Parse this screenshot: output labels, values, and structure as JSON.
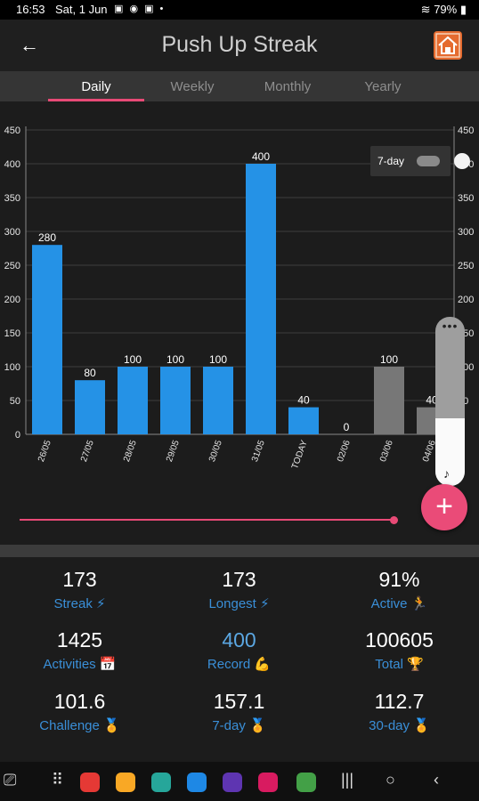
{
  "status": {
    "time": "16:53",
    "date": "Sat, 1 Jun",
    "icons": "▣ ◉ ▣ •",
    "battery": "79%"
  },
  "appbar": {
    "back_icon": "←",
    "title": "Push Up Streak",
    "app_icon": "home-icon"
  },
  "tabs": [
    {
      "label": "Daily",
      "active": true
    },
    {
      "label": "Weekly",
      "active": false
    },
    {
      "label": "Monthly",
      "active": false
    },
    {
      "label": "Yearly",
      "active": false
    }
  ],
  "chart_toggle": {
    "label": "7-day",
    "on": false
  },
  "chart_data": {
    "type": "bar",
    "categories": [
      "26/05",
      "27/05",
      "28/05",
      "29/05",
      "30/05",
      "31/05",
      "TODAY",
      "02/06",
      "03/06",
      "04/06"
    ],
    "values": [
      280,
      80,
      100,
      100,
      100,
      400,
      40,
      0,
      100,
      40
    ],
    "value_labels": [
      "280",
      "80",
      "100",
      "100",
      "100",
      "400",
      "40",
      "0",
      "100",
      "40"
    ],
    "bar_colors": [
      "#2592e6",
      "#2592e6",
      "#2592e6",
      "#2592e6",
      "#2592e6",
      "#2592e6",
      "#2592e6",
      "#2592e6",
      "#777777",
      "#777777"
    ],
    "ylim": [
      0,
      450
    ],
    "yticks": [
      "0",
      "50",
      "100",
      "150",
      "200",
      "250",
      "300",
      "350",
      "400",
      "450"
    ],
    "grid": true
  },
  "volume_slider": {
    "dots": "•••",
    "level": 0.4,
    "icon": "♪"
  },
  "fab": {
    "label": "+"
  },
  "range_slider": {
    "level": 1.0
  },
  "stats": [
    {
      "value": "173",
      "label": "Streak ⚡"
    },
    {
      "value": "173",
      "label": "Longest ⚡"
    },
    {
      "value": "91%",
      "label": "Active 🏃"
    },
    {
      "value": "1425",
      "label": "Activities 📅"
    },
    {
      "value": "400",
      "label": "Record 💪"
    },
    {
      "value": "100605",
      "label": "Total 🏆"
    },
    {
      "value": "101.6",
      "label": "Challenge 🏅"
    },
    {
      "value": "157.1",
      "label": "7-day 🏅"
    },
    {
      "value": "112.7",
      "label": "30-day 🏅"
    }
  ],
  "navbar": {
    "apps_icon": "⠿",
    "recents": "|||",
    "home": "○",
    "back": "‹",
    "app_colors": [
      "#e53935",
      "#f9a825",
      "#26a69a",
      "#1e88e5",
      "#5e35b1",
      "#d81b60",
      "#43a047"
    ]
  }
}
